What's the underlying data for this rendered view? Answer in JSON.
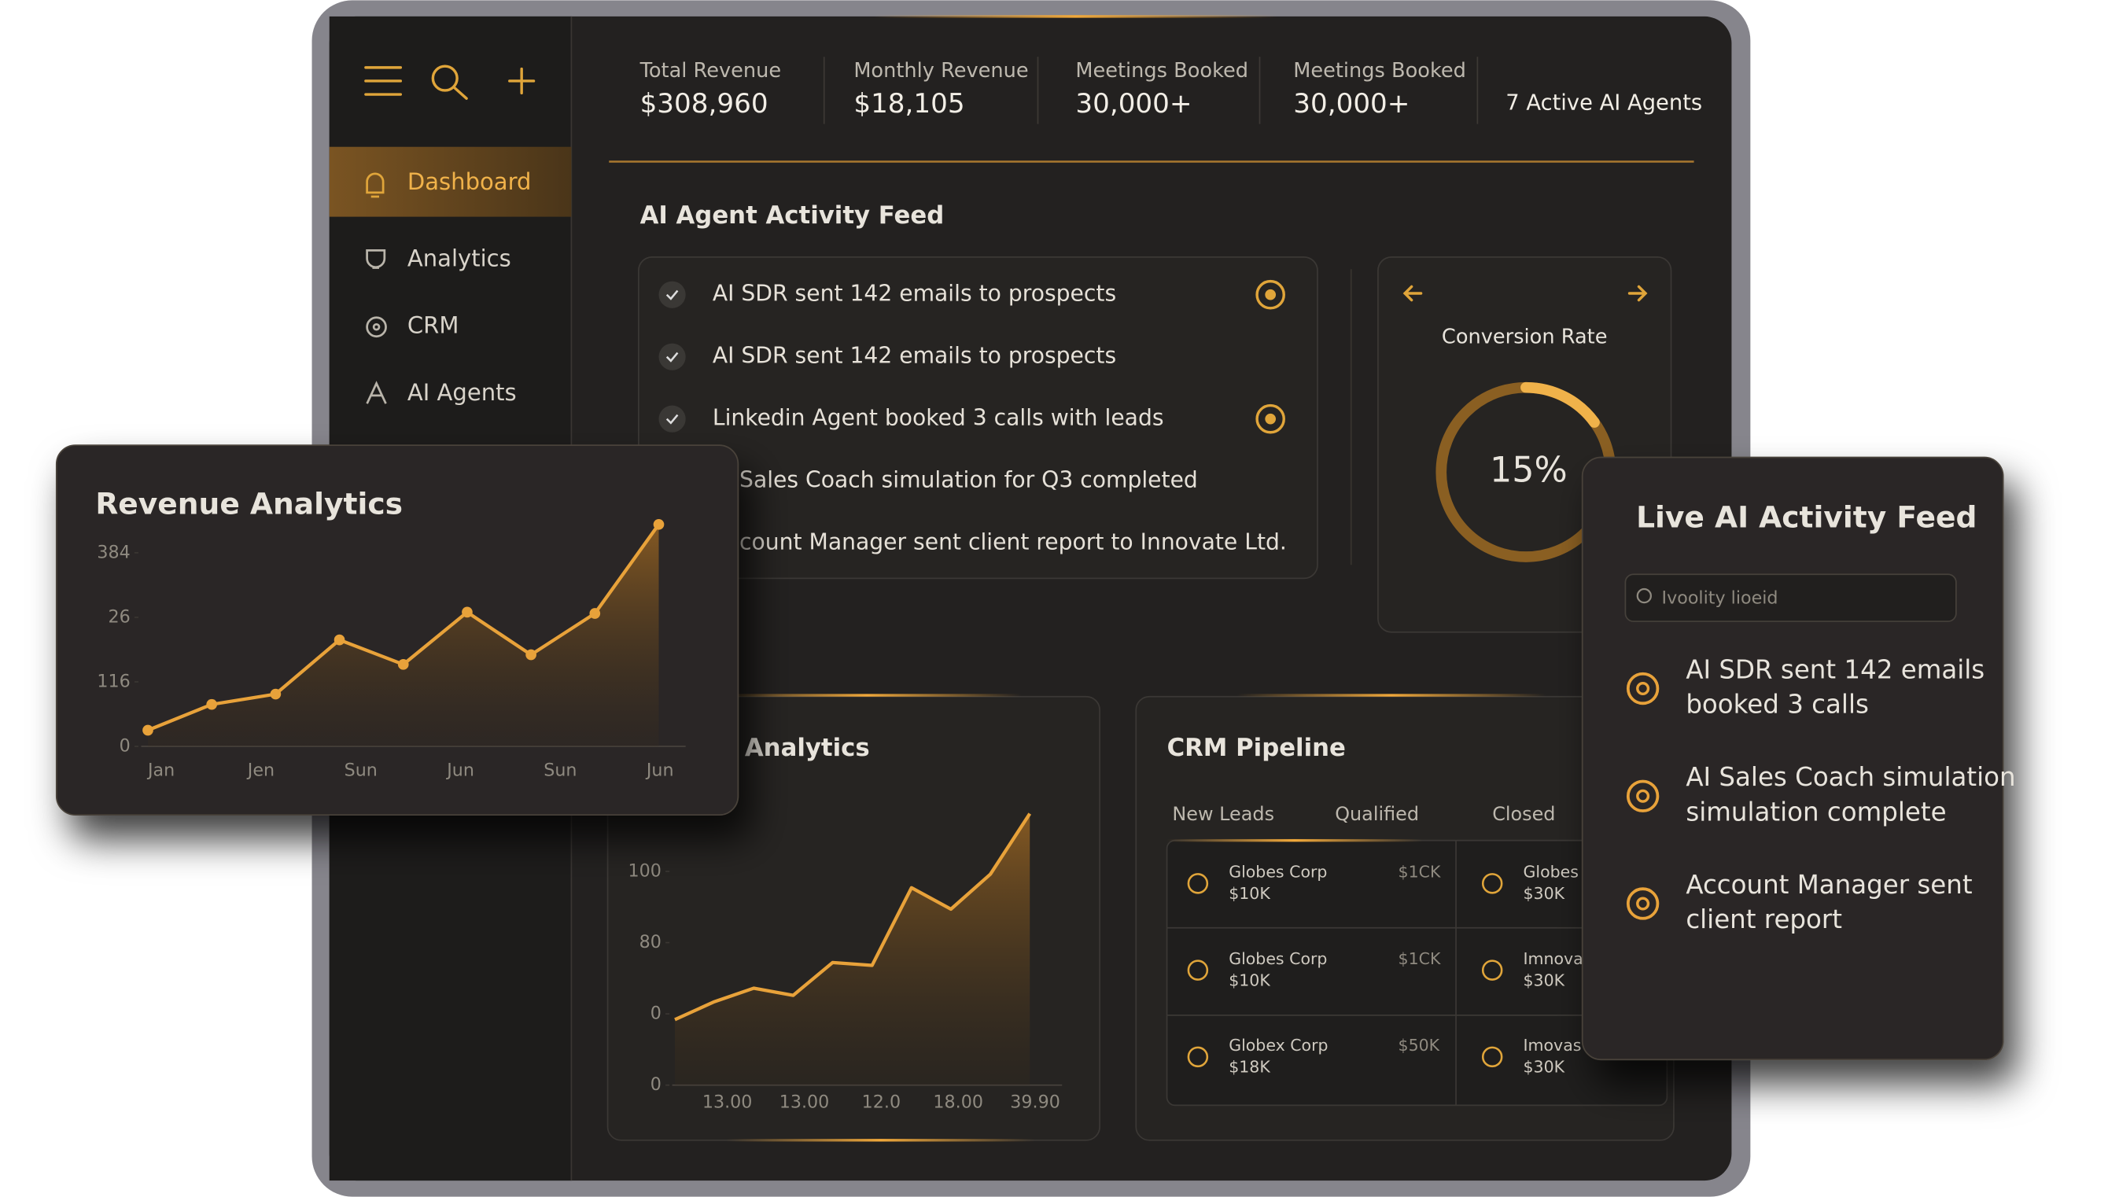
{
  "sidebar": {
    "nav": [
      "Dashboard",
      "Analytics",
      "CRM",
      "AI Agents"
    ]
  },
  "stats": [
    {
      "label": "Total Revenue",
      "value": "$308,960"
    },
    {
      "label": "Monthly Revenue",
      "value": "$18,105"
    },
    {
      "label": "Meetings Booked",
      "value": "30,000+"
    },
    {
      "label": "Meetings Booked",
      "value": "30,000+"
    }
  ],
  "active_agents": "7 Active AI Agents",
  "activity_feed": {
    "title": "AI Agent Activity Feed",
    "items": [
      "AI SDR sent 142 emails to prospects",
      "AI SDR sent 142 emails to prospects",
      "Linkedin Agent booked 3 calls with leads",
      "Sales Coach simulation for Q3 completed",
      "count Manager sent client report to Innovate Ltd."
    ]
  },
  "conversion": {
    "title": "Conversion Rate",
    "value": 15,
    "value_label": "15%"
  },
  "revenue_chart": {
    "type": "line",
    "title": "Revenue Analytics",
    "values": [
      25,
      65,
      81,
      165,
      127,
      208,
      142,
      206,
      344
    ],
    "ylim": [
      0,
      350
    ],
    "yticks": [
      0,
      {
        "value": 100,
        "label": "116"
      },
      {
        "value": 200,
        "label": "26"
      },
      {
        "value": 300,
        "label": "384"
      }
    ],
    "x_labels": [
      "Jan",
      "Jen",
      "Sun",
      "Jun",
      "Sun",
      "Jun"
    ],
    "color": "#e8a23a"
  },
  "analytics_chart": {
    "type": "line",
    "title": "Analytics",
    "values": [
      0.92,
      1.17,
      1.36,
      1.26,
      1.72,
      1.68,
      2.77,
      2.47,
      2.96,
      3.81
    ],
    "ylim": [
      0,
      4
    ],
    "yticks": [
      0,
      {
        "value": 1,
        "label": "0"
      },
      {
        "value": 2,
        "label": "80"
      },
      {
        "value": 3,
        "label": "100"
      }
    ],
    "x_labels": [
      "13.00",
      "13.00",
      "12.0",
      "18.00",
      "39.90"
    ],
    "color": "#e8a23a"
  },
  "crm": {
    "title": "CRM Pipeline",
    "columns": [
      "New Leads",
      "Qualified",
      "Closed"
    ],
    "left": [
      {
        "name": "Globes Corp",
        "amount": "$10K",
        "side": "$1CK"
      },
      {
        "name": "Globes Corp",
        "amount": "$10K",
        "side": "$1CK"
      },
      {
        "name": "Globex Corp",
        "amount": "$18K",
        "side": "$50K"
      }
    ],
    "right": [
      {
        "name": "Globes C",
        "amount": "$30K"
      },
      {
        "name": "Imnovan",
        "amount": "$30K"
      },
      {
        "name": "Imovas",
        "amount": "$30K"
      }
    ]
  },
  "live_feed": {
    "title": "Live AI Activity Feed",
    "search_placeholder": "Ivoolity lioeid",
    "items": [
      [
        "AI SDR sent 142 emails",
        "booked 3 calls"
      ],
      [
        "AI Sales Coach simulation",
        "simulation complete"
      ],
      [
        "Account Manager sent",
        "client report"
      ]
    ]
  }
}
